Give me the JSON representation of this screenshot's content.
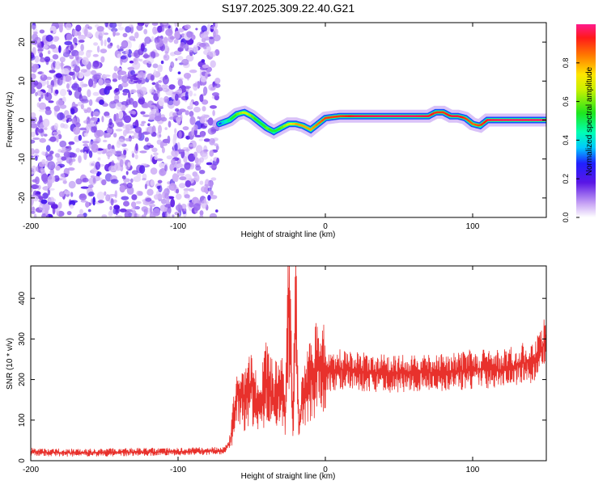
{
  "title": "S197.2025.309.22.40.G21",
  "chart_data": [
    {
      "type": "heatmap",
      "xlabel": "Height of straight line (km)",
      "ylabel": "Frequency (Hz)",
      "xlim": [
        -200,
        150
      ],
      "ylim": [
        -25,
        25
      ],
      "xticks": [
        -200,
        -100,
        0,
        100
      ],
      "yticks": [
        -20,
        -10,
        0,
        10,
        20
      ],
      "colorbar": {
        "label": "Normalized spectral amplitude",
        "range": [
          0,
          1
        ],
        "ticks": [
          0.0,
          0.2,
          0.4,
          0.6,
          0.8
        ],
        "tick_labels": [
          "0.0",
          "0.2",
          "0.4",
          "0.6",
          "0.8"
        ]
      },
      "noise_region_x": [
        -200,
        -73
      ],
      "signal_track": {
        "x": [
          -72,
          -65,
          -60,
          -55,
          -50,
          -45,
          -40,
          -35,
          -30,
          -25,
          -20,
          -15,
          -10,
          -5,
          0,
          10,
          20,
          40,
          60,
          70,
          75,
          80,
          85,
          90,
          95,
          100,
          105,
          110,
          120,
          130,
          140,
          150
        ],
        "freq": [
          -1,
          0,
          1.5,
          2,
          1,
          -0.5,
          -2,
          -3,
          -2,
          -1,
          -1,
          -1.5,
          -2.5,
          -1,
          0.5,
          1,
          1,
          1,
          1,
          1,
          2,
          2,
          1,
          1,
          0.5,
          -1,
          -1.5,
          0,
          0,
          0,
          0,
          0
        ],
        "amplitude": [
          0.3,
          0.5,
          0.6,
          0.7,
          0.6,
          0.5,
          0.6,
          0.5,
          0.6,
          0.7,
          0.8,
          0.8,
          0.8,
          0.85,
          0.9,
          0.9,
          0.95,
          0.97,
          0.97,
          0.95,
          0.9,
          0.9,
          0.95,
          0.95,
          0.9,
          0.85,
          0.9,
          0.95,
          0.97,
          0.97,
          0.97,
          0.97
        ]
      }
    },
    {
      "type": "line",
      "xlabel": "Height of straight line (km)",
      "ylabel": "SNR (10 * v/v)",
      "xlim": [
        -200,
        150
      ],
      "ylim": [
        0,
        480
      ],
      "xticks": [
        -200,
        -100,
        0,
        100
      ],
      "yticks": [
        0,
        100,
        200,
        300,
        400
      ],
      "series": [
        {
          "color": "#e8312c",
          "x": [
            -200,
            -180,
            -160,
            -140,
            -120,
            -100,
            -80,
            -70,
            -65,
            -62,
            -60,
            -58,
            -55,
            -50,
            -45,
            -40,
            -35,
            -30,
            -27,
            -25,
            -22,
            -20,
            -18,
            -15,
            -10,
            -5,
            0,
            10,
            20,
            40,
            60,
            80,
            100,
            120,
            130,
            140,
            145,
            150
          ],
          "y": [
            22,
            20,
            20,
            21,
            22,
            22,
            24,
            23,
            40,
            110,
            190,
            170,
            160,
            190,
            120,
            200,
            150,
            190,
            100,
            420,
            100,
            380,
            90,
            160,
            200,
            230,
            215,
            225,
            220,
            215,
            215,
            220,
            225,
            225,
            235,
            245,
            260,
            305
          ]
        }
      ]
    }
  ]
}
